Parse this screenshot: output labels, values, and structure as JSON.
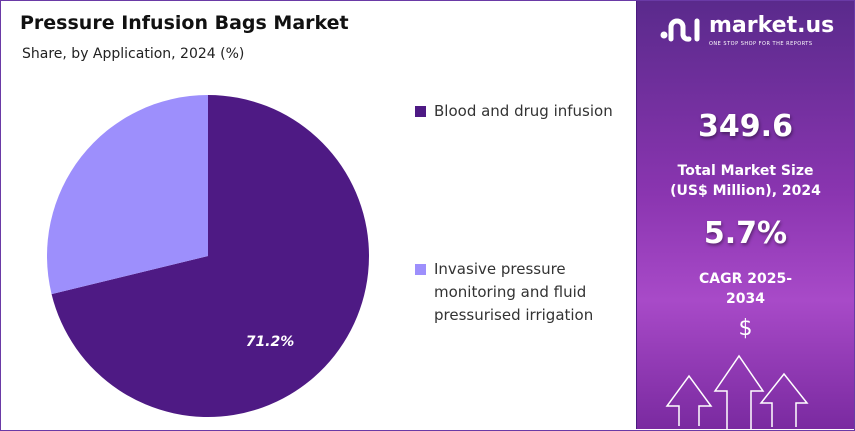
{
  "title": "Pressure Infusion Bags Market",
  "subtitle": "Share, by Application, 2024 (%)",
  "chart_data": {
    "type": "pie",
    "categories": [
      "Blood and drug infusion",
      "Invasive pressure monitoring and fluid pressurised irrigation"
    ],
    "values": [
      71.2,
      28.8
    ],
    "data_labels": [
      "71.2%",
      ""
    ],
    "colors": [
      "#4e1a84",
      "#9d8ffc"
    ],
    "legend": "right"
  },
  "legend": [
    {
      "label": "Blood and drug infusion"
    },
    {
      "label": "Invasive pressure monitoring and fluid pressurised irrigation"
    }
  ],
  "panel": {
    "brand": "market.us",
    "tagline": "ONE STOP SHOP FOR THE REPORTS",
    "market_size": "349.6",
    "market_size_label": "Total Market Size (US$ Million), 2024",
    "cagr": "5.7%",
    "cagr_label": "CAGR 2025-2034",
    "currency_symbol": "$"
  }
}
